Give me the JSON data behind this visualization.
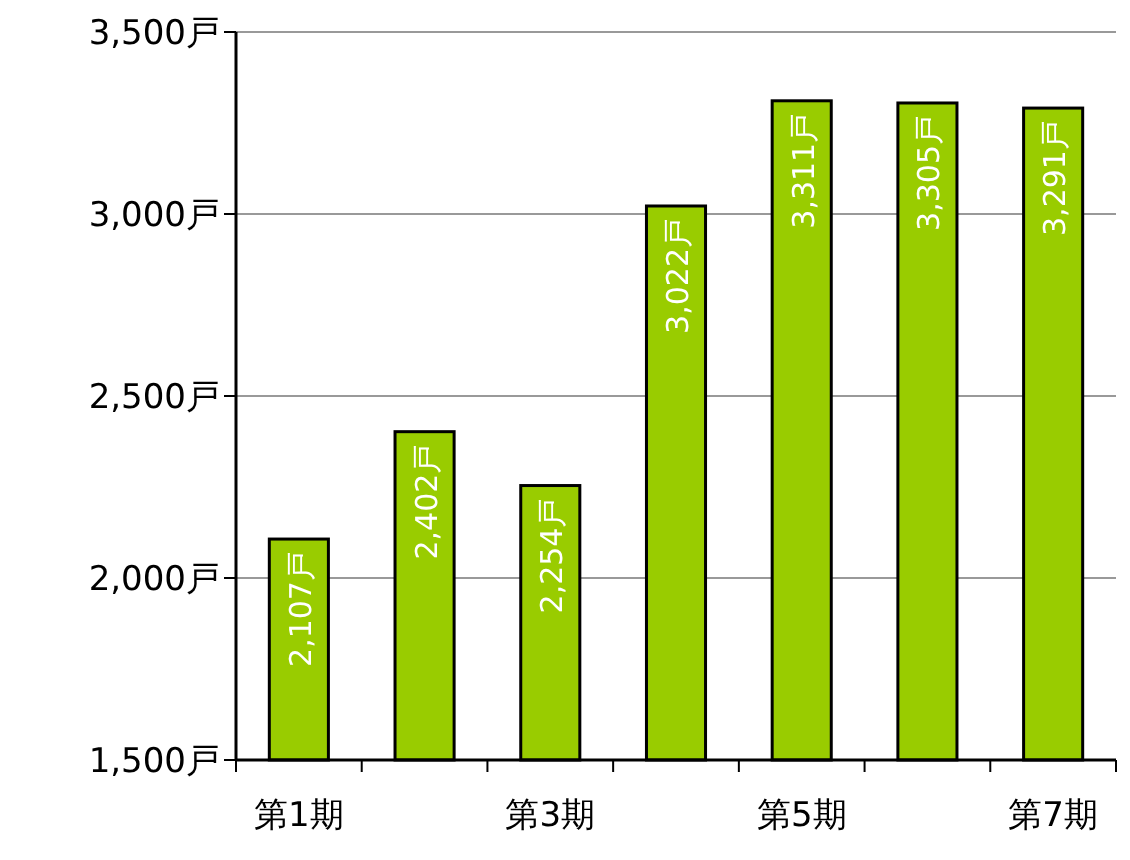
{
  "chart_data": {
    "type": "bar",
    "categories": [
      "第1期",
      null,
      "第3期",
      null,
      "第5期",
      null,
      "第7期"
    ],
    "values": [
      2107,
      2402,
      2254,
      3022,
      3311,
      3305,
      3291
    ],
    "value_labels": [
      "2,107戸",
      "2,402戸",
      "2,254戸",
      "3,022戸",
      "3,311戸",
      "3,305戸",
      "3,291戸"
    ],
    "color": "#99cc00",
    "ylim": [
      1500,
      3500
    ],
    "yticks": [
      {
        "value": 1500,
        "label": "1,500戸"
      },
      {
        "value": 2000,
        "label": "2,000戸"
      },
      {
        "value": 2500,
        "label": "2,500戸"
      },
      {
        "value": 3000,
        "label": "3,000戸"
      },
      {
        "value": 3500,
        "label": "3,500戸"
      }
    ],
    "grid": "y"
  }
}
